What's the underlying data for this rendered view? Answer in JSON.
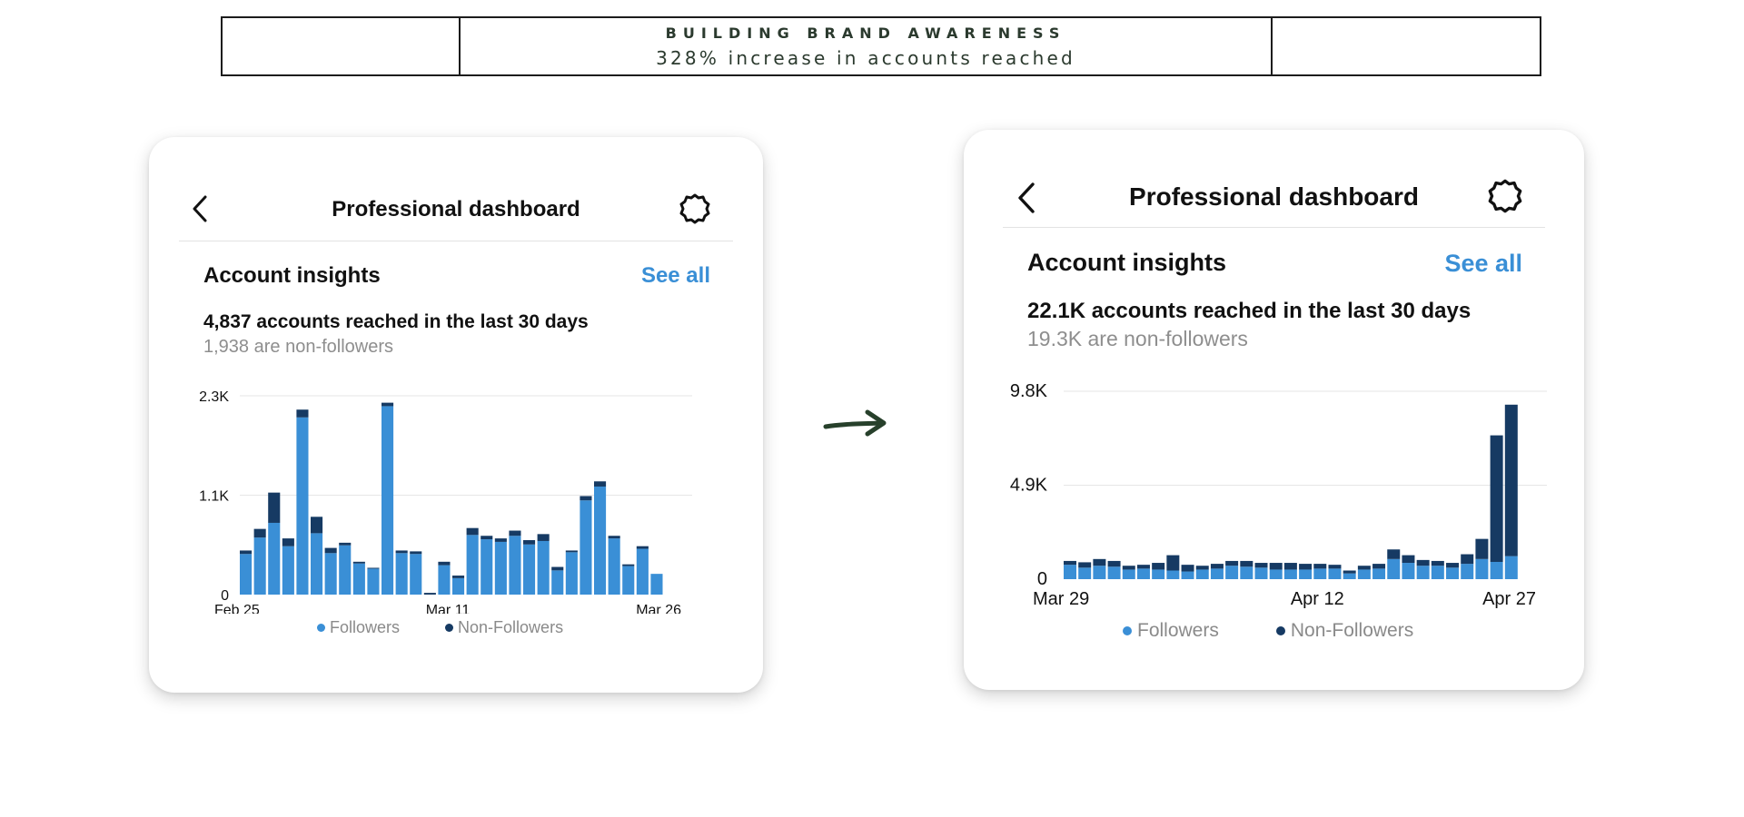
{
  "banner": {
    "title": "BUILDING BRAND AWARENESS",
    "subtitle": "328% increase in accounts reached"
  },
  "colors": {
    "followers": "#3a8fd6",
    "non_followers": "#163a63",
    "link": "#3a8fd6",
    "banner_text": "#2b3a2e"
  },
  "cards": [
    {
      "title": "Professional dashboard",
      "section_title": "Account insights",
      "see_all": "See all",
      "reach_text": "4,837 accounts reached in the last 30 days",
      "nonfollowers_text": "1,938 are non-followers",
      "legend": [
        "Followers",
        "Non-Followers"
      ]
    },
    {
      "title": "Professional dashboard",
      "section_title": "Account insights",
      "see_all": "See all",
      "reach_text": "22.1K accounts reached in the last 30 days",
      "nonfollowers_text": "19.3K are non-followers",
      "legend": [
        "Followers",
        "Non-Followers"
      ]
    }
  ],
  "chart_data": [
    {
      "type": "bar",
      "stacked": true,
      "x_tick_labels": [
        "Feb 25",
        "Mar 11",
        "Mar 26"
      ],
      "y_tick_labels": [
        "0",
        "1.1K",
        "2.3K"
      ],
      "ylim": [
        0,
        2300
      ],
      "legend_placement": "bottom",
      "grid": true,
      "series": [
        {
          "name": "Followers",
          "values": [
            470,
            660,
            830,
            560,
            2050,
            710,
            480,
            570,
            360,
            300,
            2180,
            480,
            470,
            0,
            340,
            190,
            690,
            640,
            610,
            680,
            580,
            620,
            280,
            490,
            1090,
            1250,
            650,
            330,
            530,
            240
          ]
        },
        {
          "name": "Non-Followers",
          "values": [
            40,
            100,
            350,
            90,
            90,
            190,
            60,
            30,
            20,
            10,
            40,
            30,
            30,
            20,
            40,
            30,
            80,
            40,
            40,
            60,
            50,
            80,
            40,
            20,
            50,
            60,
            30,
            20,
            30,
            0
          ]
        }
      ]
    },
    {
      "type": "bar",
      "stacked": true,
      "x_tick_labels": [
        "Mar 29",
        "Apr 12",
        "Apr 27"
      ],
      "y_tick_labels": [
        "0",
        "4.9K",
        "9.8K"
      ],
      "ylim": [
        0,
        9800
      ],
      "legend_placement": "bottom",
      "grid": true,
      "series": [
        {
          "name": "Followers",
          "values": [
            750,
            600,
            700,
            650,
            500,
            550,
            500,
            450,
            400,
            500,
            550,
            700,
            650,
            600,
            500,
            500,
            500,
            550,
            550,
            300,
            500,
            550,
            1050,
            850,
            700,
            700,
            600,
            800,
            1050,
            900,
            1200
          ]
        },
        {
          "name": "Non-Followers",
          "values": [
            200,
            280,
            350,
            300,
            200,
            200,
            350,
            800,
            350,
            200,
            250,
            250,
            300,
            250,
            350,
            350,
            300,
            250,
            200,
            150,
            200,
            250,
            500,
            400,
            300,
            250,
            250,
            500,
            1050,
            6600,
            7900
          ]
        }
      ]
    }
  ]
}
